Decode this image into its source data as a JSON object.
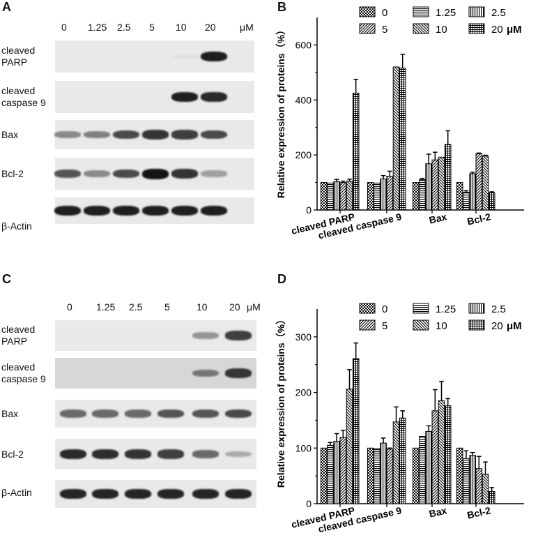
{
  "panels": {
    "A": "A",
    "B": "B",
    "C": "C",
    "D": "D"
  },
  "blots": [
    {
      "id": "A",
      "concentrations": [
        "0",
        "1.25",
        "2.5",
        "5",
        "10",
        "20"
      ],
      "unit": "μM",
      "rows": [
        {
          "label_lines": [
            "cleaved",
            "PARP"
          ],
          "intensity": [
            0,
            0,
            0,
            0,
            0.05,
            0.95
          ]
        },
        {
          "label_lines": [
            "cleaved",
            "caspase 9"
          ],
          "intensity": [
            0,
            0,
            0,
            0,
            0.95,
            0.9
          ]
        },
        {
          "label_lines": [
            "Bax"
          ],
          "intensity": [
            0.45,
            0.5,
            0.75,
            0.85,
            0.8,
            0.75
          ]
        },
        {
          "label_lines": [
            "Bcl-2"
          ],
          "intensity": [
            0.7,
            0.45,
            0.75,
            1.0,
            0.85,
            0.35
          ]
        },
        {
          "label_lines": [
            "β-Actin"
          ],
          "intensity": [
            0.95,
            0.95,
            0.95,
            0.95,
            0.95,
            0.95
          ]
        }
      ]
    },
    {
      "id": "C",
      "concentrations": [
        "0",
        "1.25",
        "2.5",
        "5",
        "10",
        "20"
      ],
      "unit": "μM",
      "rows": [
        {
          "label_lines": [
            "cleaved",
            "PARP"
          ],
          "intensity": [
            0,
            0,
            0,
            0,
            0.4,
            0.8
          ]
        },
        {
          "label_lines": [
            "cleaved",
            "caspase 9"
          ],
          "intensity": [
            0,
            0,
            0,
            0,
            0.55,
            0.85
          ]
        },
        {
          "label_lines": [
            "Bax"
          ],
          "intensity": [
            0.6,
            0.6,
            0.6,
            0.7,
            0.7,
            0.75
          ]
        },
        {
          "label_lines": [
            "Bcl-2"
          ],
          "intensity": [
            0.9,
            0.88,
            0.85,
            0.8,
            0.6,
            0.3
          ]
        },
        {
          "label_lines": [
            "β-Actin"
          ],
          "intensity": [
            0.92,
            0.92,
            0.92,
            0.92,
            0.92,
            0.92
          ]
        }
      ]
    }
  ],
  "chart_data": [
    {
      "id": "B",
      "type": "bar",
      "ylabel": "Relative expression of proteins（%）",
      "ylim": [
        0,
        700
      ],
      "yticks": [
        0,
        200,
        400,
        600
      ],
      "categories": [
        "cleaved PARP",
        "cleaved caspase 9",
        "Bax",
        "Bcl-2"
      ],
      "legend_placement": "top",
      "series": [
        {
          "name": "0",
          "pattern": "checker",
          "values": [
            100,
            100,
            100,
            100
          ],
          "errors": [
            0,
            0,
            0,
            0
          ]
        },
        {
          "name": "1.25",
          "pattern": "hlines",
          "values": [
            98,
            98,
            110,
            65
          ],
          "errors": [
            0,
            0,
            5,
            5
          ]
        },
        {
          "name": "2.5",
          "pattern": "vlines",
          "values": [
            103,
            113,
            168,
            132
          ],
          "errors": [
            8,
            12,
            35,
            5
          ]
        },
        {
          "name": "5",
          "pattern": "diag",
          "values": [
            100,
            123,
            182,
            204
          ],
          "errors": [
            5,
            18,
            28,
            3
          ]
        },
        {
          "name": "10",
          "pattern": "diag2",
          "values": [
            104,
            520,
            192,
            196
          ],
          "errors": [
            8,
            0,
            0,
            3
          ]
        },
        {
          "name": "20",
          "pattern": "grid",
          "values": [
            425,
            516,
            238,
            63
          ],
          "errors": [
            50,
            50,
            50,
            3
          ]
        }
      ]
    },
    {
      "id": "D",
      "type": "bar",
      "ylabel": "Relative expression of proteins（%）",
      "ylim": [
        0,
        350
      ],
      "yticks": [
        0,
        100,
        200,
        300
      ],
      "categories": [
        "cleaved PARP",
        "cleaved caspase 9",
        "Bax",
        "Bcl-2"
      ],
      "legend_placement": "top",
      "series": [
        {
          "name": "0",
          "pattern": "checker",
          "values": [
            100,
            100,
            100,
            100
          ],
          "errors": [
            0,
            0,
            0,
            0
          ]
        },
        {
          "name": "1.25",
          "pattern": "hlines",
          "values": [
            105,
            99,
            121,
            81
          ],
          "errors": [
            5,
            0,
            0,
            14
          ]
        },
        {
          "name": "2.5",
          "pattern": "vlines",
          "values": [
            112,
            109,
            130,
            87
          ],
          "errors": [
            14,
            9,
            10,
            5
          ]
        },
        {
          "name": "5",
          "pattern": "diag",
          "values": [
            119,
            98,
            167,
            63
          ],
          "errors": [
            13,
            2,
            38,
            22
          ]
        },
        {
          "name": "10",
          "pattern": "diag2",
          "values": [
            206,
            147,
            185,
            53
          ],
          "errors": [
            35,
            27,
            35,
            22
          ]
        },
        {
          "name": "20",
          "pattern": "grid",
          "values": [
            261,
            154,
            176,
            22
          ],
          "errors": [
            28,
            13,
            13,
            7
          ]
        }
      ]
    }
  ],
  "legend_unit": "μM"
}
